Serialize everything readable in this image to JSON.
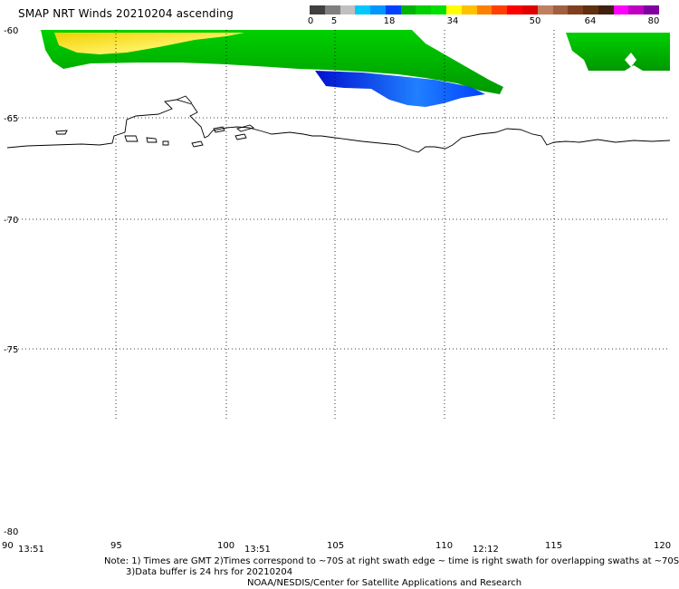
{
  "title": "SMAP NRT Winds 20210204 ascending",
  "colorbar": {
    "segments": [
      "#404040",
      "#808080",
      "#c0c0c0",
      "#00c8ff",
      "#0096ff",
      "#0040ff",
      "#00b400",
      "#00d000",
      "#00e000",
      "#ffff00",
      "#ffc000",
      "#ff8000",
      "#ff4000",
      "#ff0000",
      "#e00000",
      "#c08060",
      "#a06040",
      "#804020",
      "#603010",
      "#402010",
      "#ff00ff",
      "#c000c0",
      "#8000a0"
    ],
    "labels": [
      "0",
      "5",
      "18",
      "34",
      "50",
      "64",
      "80"
    ]
  },
  "axes": {
    "lat_labels": [
      "-60",
      "-65",
      "-70",
      "-75",
      "-80"
    ],
    "lon_labels": [
      "90",
      "95",
      "100",
      "105",
      "110",
      "115",
      "120"
    ],
    "lat_values": [
      -60,
      -65,
      -70,
      -75,
      -80
    ],
    "lon_values": [
      90,
      95,
      100,
      105,
      110,
      115,
      120
    ]
  },
  "times": [
    "13:51",
    "13:51",
    "12:12"
  ],
  "notes": [
    "Note: 1) Times are GMT 2)Times correspond to ~70S at right swath edge ~ time is right swath for overlapping swaths at ~70S",
    "3)Data buffer is 24 hrs for 20210204",
    "NOAA/NESDIS/Center for Satellite Applications and Research"
  ],
  "colors": {
    "green": "#00c000",
    "yellow": "#f2d400",
    "blue": "#0030e0",
    "coast": "#000000",
    "grid": "#000000"
  }
}
